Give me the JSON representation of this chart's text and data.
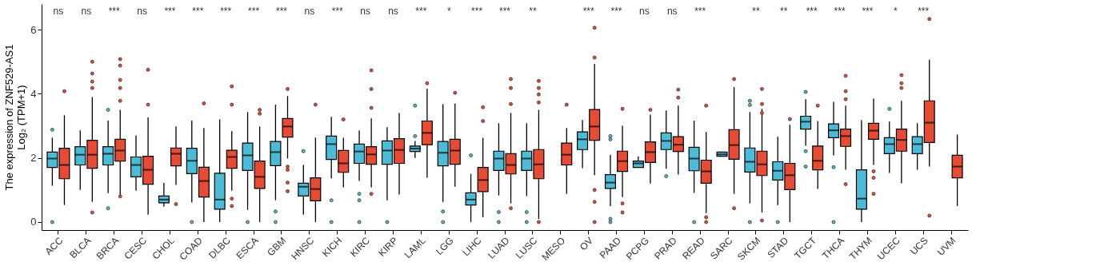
{
  "chart_data": {
    "type": "box",
    "ylabel": "The expression of ZNF529-AS1\nLog₂ (TPM+1)",
    "categories": [
      "ACC",
      "BLCA",
      "BRCA",
      "CESC",
      "CHOL",
      "COAD",
      "DLBC",
      "ESCA",
      "GBM",
      "HNSC",
      "KICH",
      "KIRC",
      "KIRP",
      "LAML",
      "LGG",
      "LIHC",
      "LUAD",
      "LUSC",
      "MESO",
      "OV",
      "PAAD",
      "PCPG",
      "PRAD",
      "READ",
      "SARC",
      "SKCM",
      "STAD",
      "TGCT",
      "THCA",
      "THYM",
      "UCEC",
      "UCS",
      "UVM"
    ],
    "ylim": [
      -0.25,
      6.8
    ],
    "yticks": [
      0,
      2,
      4,
      6
    ],
    "series": [
      {
        "color": "#4dbbd5",
        "boxes": [
          {
            "low": 1.13,
            "q1": 1.7,
            "median": 1.98,
            "q3": 2.18,
            "high": 2.63,
            "outliers": [
              2.88,
              0
            ]
          },
          {
            "low": 1.0,
            "q1": 1.78,
            "median": 2.1,
            "q3": 2.35,
            "high": 2.86
          },
          {
            "low": 0.9,
            "q1": 1.78,
            "median": 2.13,
            "q3": 2.35,
            "high": 3.16,
            "outliers": [
              3.5,
              0.43
            ]
          },
          {
            "low": 0.98,
            "q1": 1.41,
            "median": 1.78,
            "q3": 2.03,
            "high": 2.7
          },
          {
            "low": 0.48,
            "q1": 0.6,
            "median": 0.7,
            "q3": 0.81,
            "high": 1.22
          },
          {
            "low": 0.61,
            "q1": 1.51,
            "median": 1.91,
            "q3": 2.3,
            "high": 3.16,
            "outliers": [
              0
            ]
          },
          {
            "low": 0,
            "q1": 0.4,
            "median": 0.7,
            "q3": 1.52,
            "high": 3.2
          },
          {
            "low": 0.38,
            "q1": 1.61,
            "median": 2.08,
            "q3": 2.46,
            "high": 3.43,
            "outliers": [
              0
            ]
          },
          {
            "low": 0.68,
            "q1": 1.76,
            "median": 2.18,
            "q3": 2.51,
            "high": 3.66,
            "outliers": [
              0.33,
              0
            ]
          },
          {
            "low": 0.23,
            "q1": 0.81,
            "median": 1.1,
            "q3": 1.21,
            "high": 1.78,
            "outliers": [
              2.21
            ]
          },
          {
            "low": 1.36,
            "q1": 1.95,
            "median": 2.43,
            "q3": 2.68,
            "high": 3.28,
            "outliers": [
              0.68,
              0
            ]
          },
          {
            "low": 1.28,
            "q1": 1.83,
            "median": 2.2,
            "q3": 2.43,
            "high": 2.86,
            "outliers": [
              0.88,
              0.68,
              0
            ]
          },
          {
            "low": 0.68,
            "q1": 1.8,
            "median": 2.23,
            "q3": 2.53,
            "high": 2.96,
            "outliers": [
              0
            ]
          },
          {
            "low": 2.0,
            "q1": 2.2,
            "median": 2.29,
            "q3": 2.37,
            "high": 2.53,
            "outliers": [
              3.63,
              2.68
            ]
          },
          {
            "low": 0.63,
            "q1": 1.75,
            "median": 2.16,
            "q3": 2.51,
            "high": 3.68,
            "outliers": [
              0.33,
              0
            ]
          },
          {
            "low": 0,
            "q1": 0.53,
            "median": 0.7,
            "q3": 0.91,
            "high": 1.5,
            "outliers": [
              2.08
            ]
          },
          {
            "low": 0.83,
            "q1": 1.61,
            "median": 1.98,
            "q3": 2.21,
            "high": 3.08,
            "outliers": [
              0.31,
              0
            ]
          },
          {
            "low": 0.81,
            "q1": 1.61,
            "median": 1.98,
            "q3": 2.21,
            "high": 3.08,
            "outliers": [
              0.31,
              0
            ]
          },
          null,
          {
            "low": 1.68,
            "q1": 2.26,
            "median": 2.58,
            "q3": 2.81,
            "high": 3.18
          },
          {
            "low": 0.5,
            "q1": 1.05,
            "median": 1.23,
            "q3": 1.48,
            "high": 2.1,
            "outliers": [
              2.68,
              2.58,
              0.1,
              0
            ]
          },
          {
            "low": 1.7,
            "q1": 1.7,
            "median": 1.83,
            "q3": 1.9,
            "high": 2.05
          },
          {
            "low": 1.66,
            "q1": 2.26,
            "median": 2.53,
            "q3": 2.78,
            "high": 3.48,
            "outliers": [
              1.43
            ]
          },
          {
            "low": 0.91,
            "q1": 1.6,
            "median": 1.98,
            "q3": 2.33,
            "high": 3.16,
            "outliers": [
              0
            ]
          },
          {
            "low": 2.05,
            "q1": 2.05,
            "median": 2.11,
            "q3": 2.18,
            "high": 2.18
          },
          {
            "low": 0.58,
            "q1": 1.56,
            "median": 1.88,
            "q3": 2.31,
            "high": 3.43,
            "outliers": [
              3.78,
              3.65,
              0
            ]
          },
          {
            "low": 0.53,
            "q1": 1.31,
            "median": 1.6,
            "q3": 1.88,
            "high": 2.66,
            "outliers": [
              0
            ]
          },
          {
            "low": 2.38,
            "q1": 2.9,
            "median": 3.13,
            "q3": 3.3,
            "high": 3.83,
            "outliers": [
              4.06,
              2.21,
              1.73
            ]
          },
          {
            "low": 2.08,
            "q1": 2.63,
            "median": 2.86,
            "q3": 3.06,
            "high": 3.75,
            "outliers": [
              1.71,
              0
            ]
          },
          {
            "low": 0,
            "q1": 0.4,
            "median": 0.73,
            "q3": 1.63,
            "high": 3.18
          },
          {
            "low": 1.53,
            "q1": 2.13,
            "median": 2.43,
            "q3": 2.63,
            "high": 3.13,
            "outliers": [
              3.53
            ]
          },
          {
            "low": 1.63,
            "q1": 2.13,
            "median": 2.43,
            "q3": 2.66,
            "high": 3.08
          },
          null
        ]
      },
      {
        "color": "#e64b35",
        "boxes": [
          {
            "low": 0.53,
            "q1": 1.35,
            "median": 1.78,
            "q3": 2.3,
            "high": 3.33,
            "outliers": [
              4.08
            ]
          },
          {
            "low": 0.63,
            "q1": 1.68,
            "median": 2.1,
            "q3": 2.55,
            "high": 3.9,
            "outliers": [
              5.0,
              4.63,
              4.38,
              4.18,
              0.3
            ]
          },
          {
            "low": 0.83,
            "q1": 1.9,
            "median": 2.23,
            "q3": 2.58,
            "high": 3.5,
            "outliers": [
              5.08,
              4.88,
              4.43,
              4.18,
              3.78,
              0.8
            ]
          },
          {
            "low": 0.23,
            "q1": 1.18,
            "median": 1.63,
            "q3": 2.05,
            "high": 3.26,
            "outliers": [
              4.75,
              3.66
            ]
          },
          {
            "low": 1.16,
            "q1": 1.75,
            "median": 2.13,
            "q3": 2.31,
            "high": 2.98,
            "outliers": [
              0.56
            ]
          },
          {
            "low": 0,
            "q1": 0.78,
            "median": 1.28,
            "q3": 1.71,
            "high": 2.93,
            "outliers": [
              3.7
            ]
          },
          {
            "low": 0.98,
            "q1": 1.68,
            "median": 2.03,
            "q3": 2.24,
            "high": 2.83,
            "outliers": [
              4.23,
              3.66,
              0.73,
              0.5
            ]
          },
          {
            "low": 0,
            "q1": 1.05,
            "median": 1.41,
            "q3": 1.9,
            "high": 2.98,
            "outliers": [
              3.5,
              3.38
            ]
          },
          {
            "low": 1.98,
            "q1": 2.65,
            "median": 2.98,
            "q3": 3.23,
            "high": 3.93,
            "outliers": [
              4.15,
              1.73,
              1.63,
              1.23,
              0.96
            ]
          },
          {
            "low": 0,
            "q1": 0.66,
            "median": 1.03,
            "q3": 1.38,
            "high": 2.63,
            "outliers": [
              3.66
            ]
          },
          {
            "low": 1.08,
            "q1": 1.55,
            "median": 1.83,
            "q3": 2.23,
            "high": 2.63,
            "outliers": [
              3.2
            ]
          },
          {
            "low": 1.08,
            "q1": 1.8,
            "median": 2.11,
            "q3": 2.35,
            "high": 3.23,
            "outliers": [
              4.73,
              4.15,
              3.56,
              0.88
            ]
          },
          {
            "low": 0.86,
            "q1": 1.83,
            "median": 2.25,
            "q3": 2.6,
            "high": 3.4
          },
          {
            "low": 1.38,
            "q1": 2.41,
            "median": 2.78,
            "q3": 3.15,
            "high": 4.16,
            "outliers": [
              4.33
            ]
          },
          {
            "low": 1.1,
            "q1": 1.8,
            "median": 2.23,
            "q3": 2.58,
            "high": 3.7,
            "outliers": [
              4.03
            ]
          },
          {
            "low": 0.15,
            "q1": 0.95,
            "median": 1.31,
            "q3": 1.7,
            "high": 2.63,
            "outliers": [
              3.58,
              3.15
            ]
          },
          {
            "low": 0.58,
            "q1": 1.5,
            "median": 1.78,
            "q3": 2.13,
            "high": 3.4,
            "outliers": [
              4.46,
              4.18,
              3.68,
              0.43
            ]
          },
          {
            "low": 0.1,
            "q1": 1.35,
            "median": 1.8,
            "q3": 2.26,
            "high": 3.5,
            "outliers": [
              4.4,
              4.18,
              3.98,
              3.73,
              0
            ]
          },
          {
            "low": 0.88,
            "q1": 1.78,
            "median": 2.1,
            "q3": 2.46,
            "high": 2.93,
            "outliers": [
              3.66
            ]
          },
          {
            "low": 1.46,
            "q1": 2.55,
            "median": 2.98,
            "q3": 3.51,
            "high": 4.93,
            "outliers": [
              6.06,
              5.13,
              1.0,
              0.63,
              0
            ]
          },
          {
            "low": 0.78,
            "q1": 1.58,
            "median": 1.9,
            "q3": 2.21,
            "high": 3.0,
            "outliers": [
              3.53,
              0.58,
              0.3
            ]
          },
          {
            "low": 1.2,
            "q1": 1.86,
            "median": 2.18,
            "q3": 2.5,
            "high": 3.35,
            "outliers": [
              3.5
            ]
          },
          {
            "low": 1.48,
            "q1": 2.2,
            "median": 2.41,
            "q3": 2.66,
            "high": 3.63,
            "outliers": [
              4.13,
              3.88
            ]
          },
          {
            "low": 0.28,
            "q1": 1.21,
            "median": 1.58,
            "q3": 1.93,
            "high": 2.81,
            "outliers": [
              3.63,
              0.15,
              0
            ]
          },
          {
            "low": 0.88,
            "q1": 1.96,
            "median": 2.4,
            "q3": 2.88,
            "high": 4.21,
            "outliers": [
              4.46,
              0.43
            ]
          },
          {
            "low": 0.3,
            "q1": 1.45,
            "median": 1.8,
            "q3": 2.21,
            "high": 3.53,
            "outliers": [
              4.15,
              3.68,
              3.4,
              0.05
            ]
          },
          {
            "low": 0,
            "q1": 1.01,
            "median": 1.46,
            "q3": 1.83,
            "high": 3.03,
            "outliers": [
              3.21
            ]
          },
          {
            "low": 1.03,
            "q1": 1.63,
            "median": 1.91,
            "q3": 2.37,
            "high": 3.15,
            "outliers": [
              3.63
            ]
          },
          {
            "low": 1.63,
            "q1": 2.36,
            "median": 2.68,
            "q3": 2.9,
            "high": 3.63,
            "outliers": [
              4.56,
              4.08,
              3.83,
              1.18
            ]
          },
          {
            "low": 1.78,
            "q1": 2.58,
            "median": 2.85,
            "q3": 3.08,
            "high": 3.85,
            "outliers": [
              1.58,
              1.38,
              0.88
            ]
          },
          {
            "low": 1.21,
            "q1": 2.21,
            "median": 2.56,
            "q3": 2.9,
            "high": 3.78,
            "outliers": [
              4.58,
              4.33,
              4.18
            ]
          },
          {
            "low": 1.73,
            "q1": 2.48,
            "median": 3.1,
            "q3": 3.78,
            "high": 5.06,
            "outliers": [
              6.33,
              0.2
            ]
          },
          {
            "low": 0.5,
            "q1": 1.38,
            "median": 1.73,
            "q3": 2.08,
            "high": 2.73
          }
        ]
      }
    ],
    "annotations": [
      "ns",
      "ns",
      "***",
      "ns",
      "***",
      "***",
      "***",
      "***",
      "***",
      "ns",
      "***",
      "ns",
      "ns",
      "***",
      "*",
      "***",
      "***",
      "**",
      null,
      "***",
      "***",
      "ns",
      "ns",
      "***",
      null,
      "**",
      "**",
      "***",
      "***",
      "***",
      "*",
      "***",
      null
    ]
  }
}
